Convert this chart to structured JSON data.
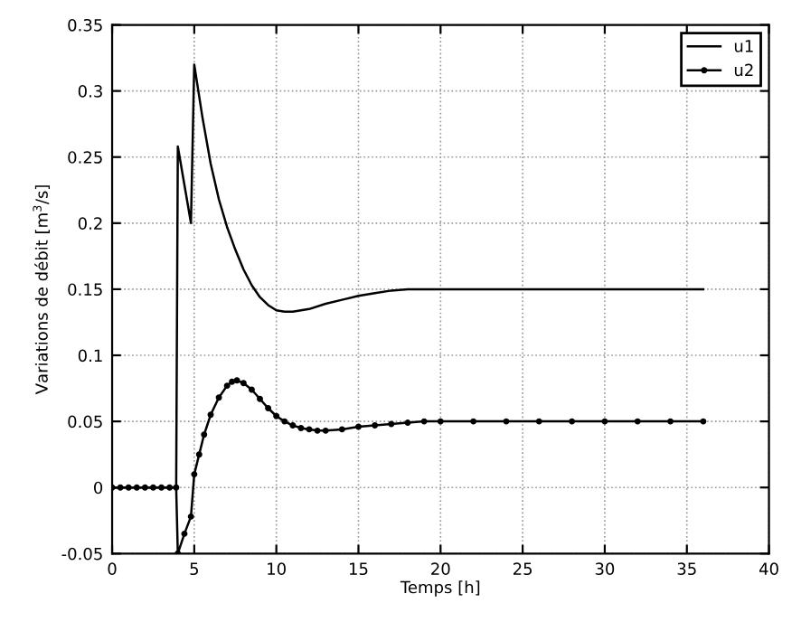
{
  "chart_data": {
    "type": "line",
    "xlabel": "Temps [h]",
    "ylabel": "Variations de débit [m$^{3}$/s]",
    "xlim": [
      0,
      40
    ],
    "ylim": [
      -0.05,
      0.35
    ],
    "xticks": [
      0,
      5,
      10,
      15,
      20,
      25,
      30,
      35,
      40
    ],
    "yticks": [
      -0.05,
      0,
      0.05,
      0.1,
      0.15,
      0.2,
      0.25,
      0.3,
      0.35
    ],
    "grid": true,
    "legend": "top right",
    "series": [
      {
        "name": "u1",
        "color": "#000000",
        "marker": "none",
        "x": [
          0,
          3.9,
          4.0,
          4.8,
          5.0,
          5.5,
          6,
          6.5,
          7,
          7.5,
          8,
          8.5,
          9,
          9.5,
          10,
          10.5,
          11,
          12,
          13,
          14,
          15,
          16,
          17,
          18,
          19,
          20,
          22,
          25,
          30,
          36
        ],
        "values": [
          0,
          0,
          0.258,
          0.2,
          0.32,
          0.28,
          0.245,
          0.218,
          0.197,
          0.18,
          0.165,
          0.153,
          0.144,
          0.138,
          0.134,
          0.133,
          0.133,
          0.135,
          0.139,
          0.142,
          0.145,
          0.147,
          0.149,
          0.15,
          0.15,
          0.15,
          0.15,
          0.15,
          0.15,
          0.15
        ]
      },
      {
        "name": "u2",
        "color": "#000000",
        "marker": "circle",
        "x": [
          0,
          0.5,
          1,
          1.5,
          2,
          2.5,
          3,
          3.5,
          3.9,
          4.0,
          4.4,
          4.8,
          5.0,
          5.3,
          5.6,
          6,
          6.5,
          7,
          7.3,
          7.6,
          8,
          8.5,
          9,
          9.5,
          10,
          10.5,
          11,
          11.5,
          12,
          12.5,
          13,
          14,
          15,
          16,
          17,
          18,
          19,
          20,
          22,
          24,
          26,
          28,
          30,
          32,
          34,
          36
        ],
        "values": [
          0,
          0,
          0,
          0,
          0,
          0,
          0,
          0,
          0,
          -0.05,
          -0.035,
          -0.022,
          0.01,
          0.025,
          0.04,
          0.055,
          0.068,
          0.077,
          0.08,
          0.081,
          0.079,
          0.074,
          0.067,
          0.06,
          0.054,
          0.05,
          0.047,
          0.045,
          0.044,
          0.043,
          0.043,
          0.044,
          0.046,
          0.047,
          0.048,
          0.049,
          0.05,
          0.05,
          0.05,
          0.05,
          0.05,
          0.05,
          0.05,
          0.05,
          0.05,
          0.05
        ]
      }
    ]
  }
}
